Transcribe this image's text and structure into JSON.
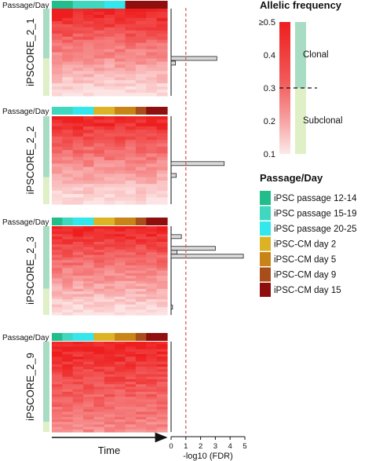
{
  "chart_data": [
    {
      "type": "heatmap",
      "panel_label": "iPSCORE_2_1",
      "track_label": "Passage/Day",
      "columns": [
        "iPSC passage 12-14",
        "iPSC passage 12-14",
        "iPSC passage 15-19",
        "iPSC passage 15-19",
        "iPSC passage 15-19",
        "iPSC passage 20-25",
        "iPSC passage 20-25",
        "iPSC-CM day 15",
        "iPSC-CM day 15",
        "iPSC-CM day 15",
        "iPSC-CM day 15"
      ],
      "rows": 28,
      "clonal_rows": 16,
      "fdr_bars": [
        {
          "row": 16,
          "value": 3.1
        },
        {
          "row": 17.5,
          "value": 0.3
        }
      ]
    },
    {
      "type": "heatmap",
      "panel_label": "iPSCORE_2_2",
      "track_label": "Passage/Day",
      "columns": [
        "iPSC passage 15-19",
        "iPSC passage 15-19",
        "iPSC passage 20-25",
        "iPSC passage 20-25",
        "iPSC-CM day 2",
        "iPSC-CM day 2",
        "iPSC-CM day 5",
        "iPSC-CM day 5",
        "iPSC-CM day 9",
        "iPSC-CM day 15",
        "iPSC-CM day 15"
      ],
      "rows": 26,
      "clonal_rows": 18,
      "fdr_bars": [
        {
          "row": 14,
          "value": 3.6
        },
        {
          "row": 17.5,
          "value": 0.35
        }
      ]
    },
    {
      "type": "heatmap",
      "panel_label": "iPSCORE_2_3",
      "track_label": "Passage/Day",
      "columns": [
        "iPSC passage 12-14",
        "iPSC passage 15-19",
        "iPSC passage 20-25",
        "iPSC passage 20-25",
        "iPSC-CM day 2",
        "iPSC-CM day 2",
        "iPSC-CM day 5",
        "iPSC-CM day 5",
        "iPSC-CM day 9",
        "iPSC-CM day 15",
        "iPSC-CM day 15"
      ],
      "rows": 34,
      "clonal_rows": 24,
      "fdr_bars": [
        {
          "row": 4,
          "value": 0.7
        },
        {
          "row": 8.5,
          "value": 3.0
        },
        {
          "row": 10,
          "value": 0.4
        },
        {
          "row": 11.5,
          "value": 4.9
        },
        {
          "row": 31,
          "value": 0.1
        }
      ]
    },
    {
      "type": "heatmap",
      "panel_label": "iPSCORE_2_9",
      "track_label": "Passage/Day",
      "columns": [
        "iPSC passage 12-14",
        "iPSC passage 15-19",
        "iPSC passage 20-25",
        "iPSC passage 20-25",
        "iPSC-CM day 2",
        "iPSC-CM day 2",
        "iPSC-CM day 5",
        "iPSC-CM day 5",
        "iPSC-CM day 9",
        "iPSC-CM day 15",
        "iPSC-CM day 15"
      ],
      "rows": 36,
      "clonal_rows": 32,
      "fdr_bars": []
    }
  ],
  "x_axis_heatmap": {
    "label": "Time"
  },
  "x_axis_fdr": {
    "label": "-log10 (FDR)",
    "ticks": [
      "0",
      "1",
      "2",
      "3",
      "4",
      "5"
    ],
    "range": [
      0,
      5
    ],
    "threshold": 1,
    "threshold_color": "#d9534f"
  },
  "legend_af": {
    "title": "Allelic frequency",
    "ticks": [
      {
        "value": 0.5,
        "label": "≥0.5"
      },
      {
        "value": 0.4,
        "label": "0.4"
      },
      {
        "value": 0.3,
        "label": "0.3"
      },
      {
        "value": 0.2,
        "label": "0.2"
      },
      {
        "value": 0.1,
        "label": "0.1"
      }
    ],
    "range": [
      0.1,
      0.5
    ],
    "cutoff": 0.3,
    "clonal_label": "Clonal",
    "subclonal_label": "Subclonal",
    "clonal_color": "#a8dcc3",
    "subclonal_color": "#dff0c6"
  },
  "legend_passage": {
    "title": "Passage/Day",
    "items": [
      {
        "label": "iPSC passage 12-14",
        "color": "#22bd8a"
      },
      {
        "label": "iPSC passage 15-19",
        "color": "#3fd8be"
      },
      {
        "label": "iPSC passage 20-25",
        "color": "#33e7ec"
      },
      {
        "label": "iPSC-CM day 2",
        "color": "#dcb325"
      },
      {
        "label": "iPSC-CM day 5",
        "color": "#c88416"
      },
      {
        "label": "iPSC-CM day 9",
        "color": "#a94e1b"
      },
      {
        "label": "iPSC-CM day 15",
        "color": "#8f0e0e"
      }
    ]
  },
  "colors": {
    "heat_high": "#ee1e1e",
    "heat_low": "#ffffff",
    "bar_fill": "#d9d9d9",
    "bar_stroke": "#222222"
  }
}
